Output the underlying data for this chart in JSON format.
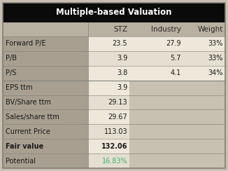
{
  "title": "Multiple-based Valuation",
  "title_bg": "#0a0a0a",
  "title_color": "#ffffff",
  "header_row": [
    "",
    "STZ",
    "Industry",
    "Weight"
  ],
  "header_bg": "#b8b0a0",
  "header_color": "#2b2b2b",
  "rows": [
    {
      "label": "Forward P/E",
      "stz": "23.5",
      "industry": "27.9",
      "weight": "33%",
      "bold": false,
      "cell_bg": "#ede8da",
      "green": false
    },
    {
      "label": "P/B",
      "stz": "3.9",
      "industry": "5.7",
      "weight": "33%",
      "bold": false,
      "cell_bg": "#e4dfd0",
      "green": false
    },
    {
      "label": "P/S",
      "stz": "3.8",
      "industry": "4.1",
      "weight": "34%",
      "bold": false,
      "cell_bg": "#ede8da",
      "green": false
    },
    {
      "label": "EPS ttm",
      "stz": "3.9",
      "industry": "",
      "weight": "",
      "bold": false,
      "cell_bg": "#ede8da",
      "green": false
    },
    {
      "label": "BV/Share ttm",
      "stz": "29.13",
      "industry": "",
      "weight": "",
      "bold": false,
      "cell_bg": "#e4dfd0",
      "green": false
    },
    {
      "label": "Sales/share ttm",
      "stz": "29.67",
      "industry": "",
      "weight": "",
      "bold": false,
      "cell_bg": "#ede8da",
      "green": false
    },
    {
      "label": "Current Price",
      "stz": "113.03",
      "industry": "",
      "weight": "",
      "bold": false,
      "cell_bg": "#e4dfd0",
      "green": false
    },
    {
      "label": "Fair value",
      "stz": "132.06",
      "industry": "",
      "weight": "",
      "bold": true,
      "cell_bg": "#ede8da",
      "green": false
    },
    {
      "label": "Potential",
      "stz": "16.83%",
      "industry": "",
      "weight": "",
      "bold": false,
      "cell_bg": "#e4dfd0",
      "green": true
    }
  ],
  "label_bg": "#a89f90",
  "outer_bg": "#c8c0b0",
  "text_color": "#1a1a1a",
  "green_color": "#3cb371",
  "sep_color": "#888880",
  "border_color": "#808078"
}
